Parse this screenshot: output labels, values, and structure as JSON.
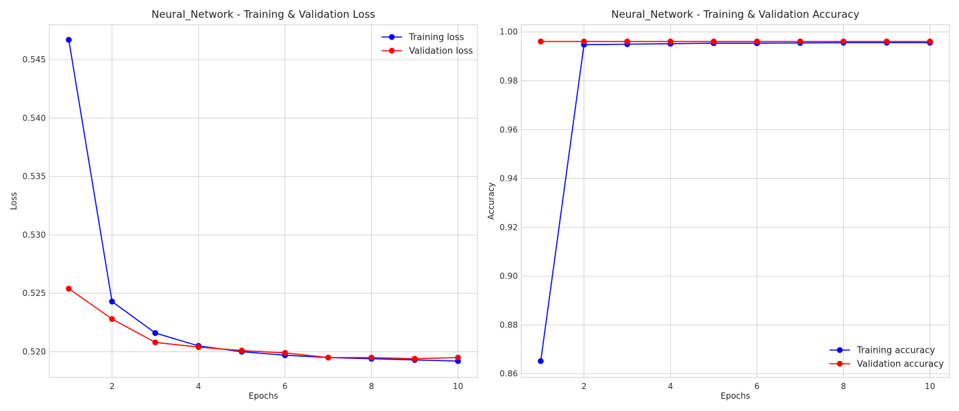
{
  "chart_data": [
    {
      "type": "line",
      "title": "Neural_Network - Training & Validation Loss",
      "xlabel": "Epochs",
      "ylabel": "Loss",
      "xlim": [
        0.55,
        10.45
      ],
      "ylim": [
        0.5178,
        0.548
      ],
      "xticks": [
        2,
        4,
        6,
        8,
        10
      ],
      "yticks": [
        0.52,
        0.525,
        0.53,
        0.535,
        0.54,
        0.545
      ],
      "ytick_decimals": 3,
      "grid": true,
      "legend": "upper-right",
      "x": [
        1,
        2,
        3,
        4,
        5,
        6,
        7,
        8,
        9,
        10
      ],
      "series": [
        {
          "name": "Training loss",
          "color": "#0000ff",
          "values": [
            0.5467,
            0.5243,
            0.5216,
            0.5205,
            0.52,
            0.5197,
            0.5195,
            0.5194,
            0.5193,
            0.5192
          ]
        },
        {
          "name": "Validation loss",
          "color": "#ff0000",
          "values": [
            0.5254,
            0.5228,
            0.5208,
            0.5204,
            0.5201,
            0.5199,
            0.5195,
            0.5195,
            0.5194,
            0.5195
          ]
        }
      ]
    },
    {
      "type": "line",
      "title": "Neural_Network - Training & Validation Accuracy",
      "xlabel": "Epochs",
      "ylabel": "Accuracy",
      "xlim": [
        0.55,
        10.45
      ],
      "ylim": [
        0.8585,
        1.003
      ],
      "xticks": [
        2,
        4,
        6,
        8,
        10
      ],
      "yticks": [
        0.86,
        0.88,
        0.9,
        0.92,
        0.94,
        0.96,
        0.98,
        1.0
      ],
      "ytick_decimals": 2,
      "grid": true,
      "legend": "lower-right",
      "x": [
        1,
        2,
        3,
        4,
        5,
        6,
        7,
        8,
        9,
        10
      ],
      "series": [
        {
          "name": "Training accuracy",
          "color": "#0000ff",
          "values": [
            0.8652,
            0.9948,
            0.995,
            0.9952,
            0.9954,
            0.9954,
            0.9955,
            0.9956,
            0.9956,
            0.9956
          ]
        },
        {
          "name": "Validation accuracy",
          "color": "#ff0000",
          "values": [
            0.9961,
            0.9961,
            0.9961,
            0.9961,
            0.9961,
            0.9961,
            0.9961,
            0.9961,
            0.9961,
            0.9961
          ]
        }
      ]
    }
  ]
}
